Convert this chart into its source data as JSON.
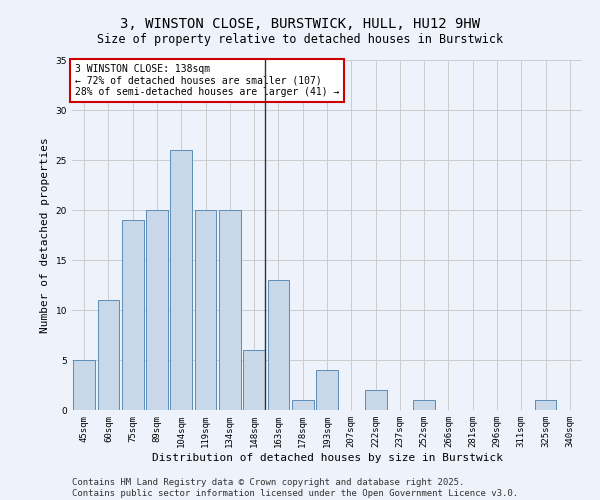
{
  "title": "3, WINSTON CLOSE, BURSTWICK, HULL, HU12 9HW",
  "subtitle": "Size of property relative to detached houses in Burstwick",
  "xlabel": "Distribution of detached houses by size in Burstwick",
  "ylabel": "Number of detached properties",
  "categories": [
    "45sqm",
    "60sqm",
    "75sqm",
    "89sqm",
    "104sqm",
    "119sqm",
    "134sqm",
    "148sqm",
    "163sqm",
    "178sqm",
    "193sqm",
    "207sqm",
    "222sqm",
    "237sqm",
    "252sqm",
    "266sqm",
    "281sqm",
    "296sqm",
    "311sqm",
    "325sqm",
    "340sqm"
  ],
  "values": [
    5,
    11,
    19,
    20,
    26,
    20,
    20,
    6,
    13,
    1,
    4,
    0,
    2,
    0,
    1,
    0,
    0,
    0,
    0,
    1,
    0
  ],
  "bar_color": "#c8d8e8",
  "bar_edge_color": "#5b8db8",
  "property_line_index": 7,
  "annotation_line1": "3 WINSTON CLOSE: 138sqm",
  "annotation_line2": "← 72% of detached houses are smaller (107)",
  "annotation_line3": "28% of semi-detached houses are larger (41) →",
  "annotation_box_color": "#ffffff",
  "annotation_box_edge": "#cc0000",
  "vline_color": "#333333",
  "grid_color": "#cccccc",
  "background_color": "#eef2fb",
  "ylim": [
    0,
    35
  ],
  "yticks": [
    0,
    5,
    10,
    15,
    20,
    25,
    30,
    35
  ],
  "footer": "Contains HM Land Registry data © Crown copyright and database right 2025.\nContains public sector information licensed under the Open Government Licence v3.0.",
  "title_fontsize": 10,
  "subtitle_fontsize": 8.5,
  "xlabel_fontsize": 8,
  "ylabel_fontsize": 8,
  "tick_fontsize": 6.5,
  "annotation_fontsize": 7,
  "footer_fontsize": 6.5
}
